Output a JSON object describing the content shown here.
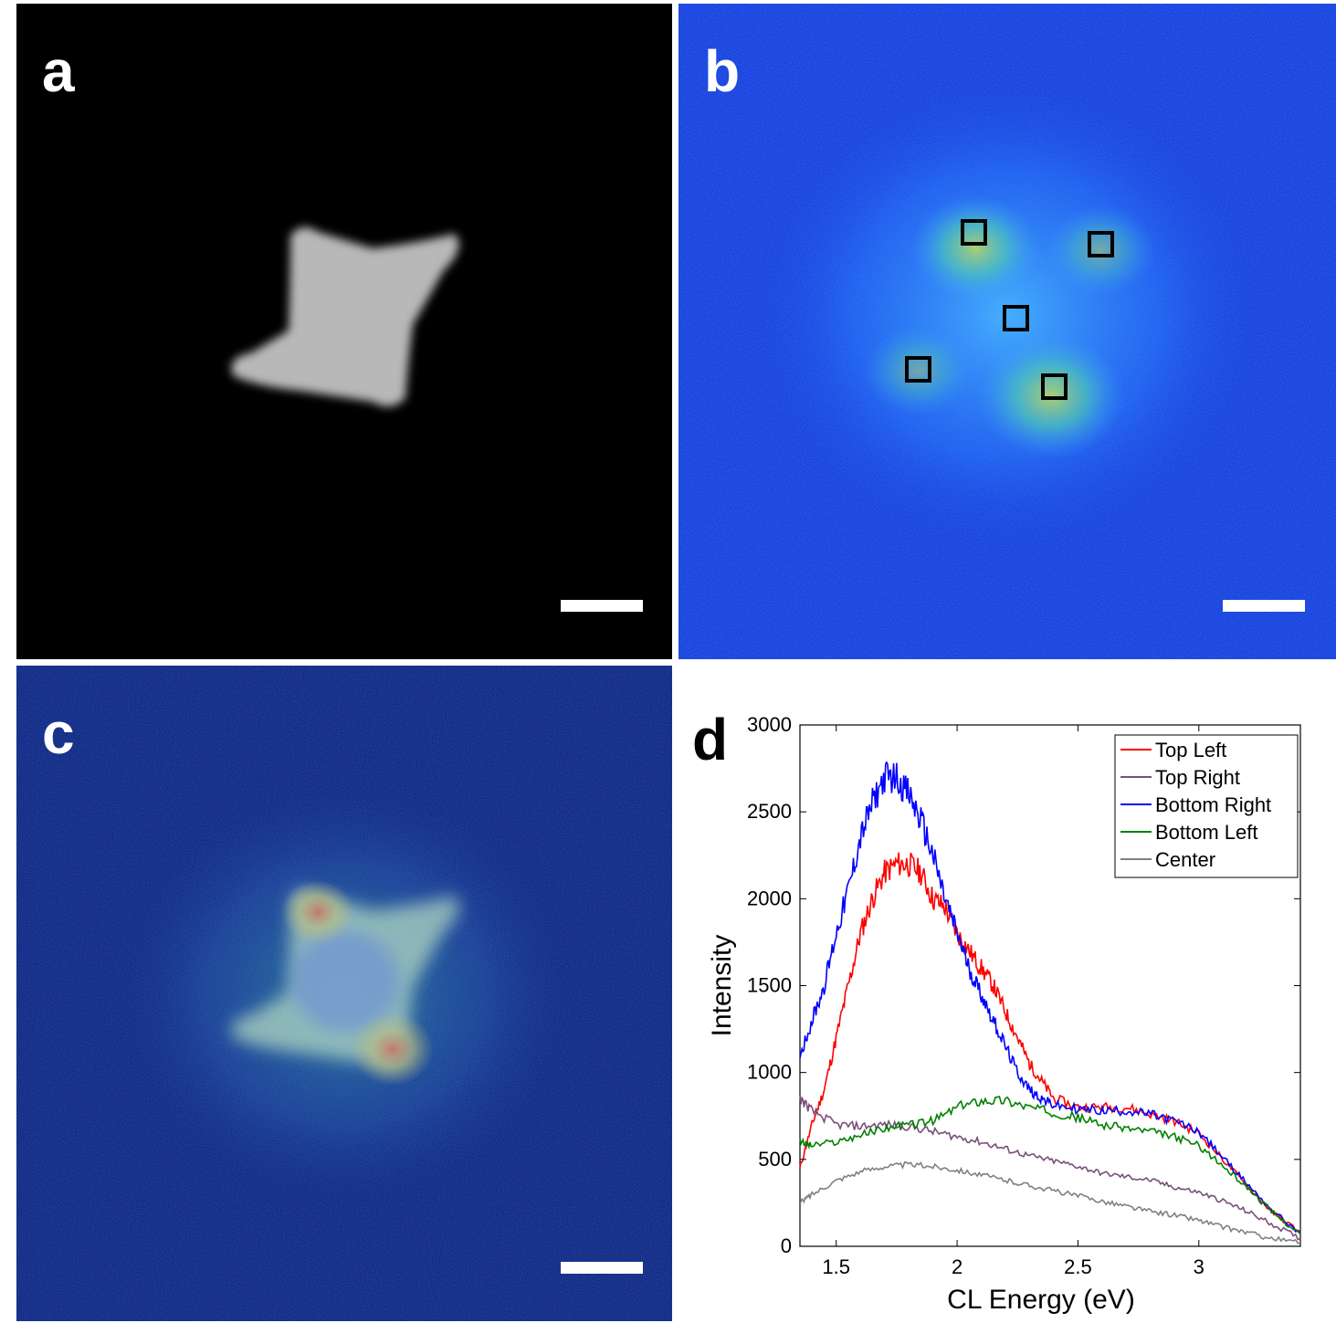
{
  "panels": {
    "a": {
      "label": "a"
    },
    "b": {
      "label": "b"
    },
    "c": {
      "label": "c"
    },
    "d": {
      "label": "d"
    }
  },
  "colors": {
    "top_left": "#ff0000",
    "top_right": "#7a4f7a",
    "bottom_right": "#0000ff",
    "bottom_left": "#008000",
    "center": "#808080"
  },
  "chart_data": {
    "type": "line",
    "title": "",
    "xlabel": "CL Energy (eV)",
    "ylabel": "Intensity",
    "xlim": [
      1.35,
      3.42
    ],
    "ylim": [
      0,
      3000
    ],
    "xticks": [
      "1.5",
      "2",
      "2.5",
      "3"
    ],
    "yticks": [
      "0",
      "500",
      "1000",
      "1500",
      "2000",
      "2500",
      "3000"
    ],
    "legend_position": "top-right",
    "grid": false,
    "series": [
      {
        "name": "Top Left",
        "color": "#ff0000",
        "x": [
          1.35,
          1.4,
          1.45,
          1.5,
          1.55,
          1.6,
          1.65,
          1.7,
          1.75,
          1.8,
          1.85,
          1.9,
          1.95,
          2.0,
          2.05,
          2.1,
          2.15,
          2.2,
          2.25,
          2.3,
          2.35,
          2.4,
          2.5,
          2.6,
          2.7,
          2.8,
          2.9,
          3.0,
          3.1,
          3.2,
          3.3,
          3.42
        ],
        "y": [
          450,
          700,
          900,
          1200,
          1500,
          1800,
          2000,
          2150,
          2200,
          2200,
          2150,
          2000,
          1950,
          1800,
          1700,
          1600,
          1500,
          1350,
          1200,
          1050,
          950,
          850,
          800,
          800,
          800,
          760,
          720,
          650,
          500,
          350,
          200,
          80
        ]
      },
      {
        "name": "Top Right",
        "color": "#7a4f7a",
        "x": [
          1.35,
          1.4,
          1.5,
          1.6,
          1.7,
          1.8,
          1.9,
          2.0,
          2.1,
          2.2,
          2.3,
          2.4,
          2.5,
          2.6,
          2.7,
          2.8,
          2.9,
          3.0,
          3.1,
          3.2,
          3.3,
          3.42
        ],
        "y": [
          850,
          780,
          700,
          690,
          700,
          690,
          660,
          630,
          600,
          560,
          520,
          490,
          460,
          420,
          400,
          380,
          340,
          310,
          260,
          200,
          130,
          45
        ]
      },
      {
        "name": "Bottom Right",
        "color": "#0000ff",
        "x": [
          1.35,
          1.4,
          1.45,
          1.5,
          1.55,
          1.6,
          1.65,
          1.7,
          1.75,
          1.8,
          1.85,
          1.9,
          1.95,
          2.0,
          2.05,
          2.1,
          2.15,
          2.2,
          2.25,
          2.3,
          2.35,
          2.4,
          2.5,
          2.6,
          2.7,
          2.8,
          2.9,
          3.0,
          3.1,
          3.2,
          3.3,
          3.42
        ],
        "y": [
          1100,
          1300,
          1500,
          1800,
          2050,
          2350,
          2550,
          2700,
          2700,
          2600,
          2450,
          2250,
          2000,
          1800,
          1600,
          1450,
          1300,
          1150,
          1000,
          900,
          850,
          810,
          790,
          780,
          780,
          760,
          720,
          660,
          510,
          360,
          210,
          75
        ]
      },
      {
        "name": "Bottom Left",
        "color": "#008000",
        "x": [
          1.35,
          1.4,
          1.5,
          1.6,
          1.7,
          1.8,
          1.9,
          2.0,
          2.1,
          2.2,
          2.3,
          2.4,
          2.5,
          2.6,
          2.7,
          2.8,
          2.9,
          3.0,
          3.1,
          3.2,
          3.3,
          3.42
        ],
        "y": [
          600,
          580,
          600,
          640,
          680,
          700,
          720,
          800,
          840,
          840,
          800,
          770,
          740,
          700,
          680,
          660,
          630,
          580,
          460,
          340,
          200,
          70
        ]
      },
      {
        "name": "Center",
        "color": "#808080",
        "x": [
          1.35,
          1.4,
          1.5,
          1.6,
          1.7,
          1.8,
          1.9,
          2.0,
          2.1,
          2.2,
          2.3,
          2.4,
          2.5,
          2.6,
          2.7,
          2.8,
          2.9,
          3.0,
          3.1,
          3.2,
          3.3,
          3.42
        ],
        "y": [
          250,
          300,
          380,
          430,
          460,
          470,
          460,
          440,
          410,
          380,
          350,
          320,
          290,
          260,
          230,
          200,
          180,
          150,
          110,
          80,
          45,
          20
        ]
      }
    ]
  }
}
